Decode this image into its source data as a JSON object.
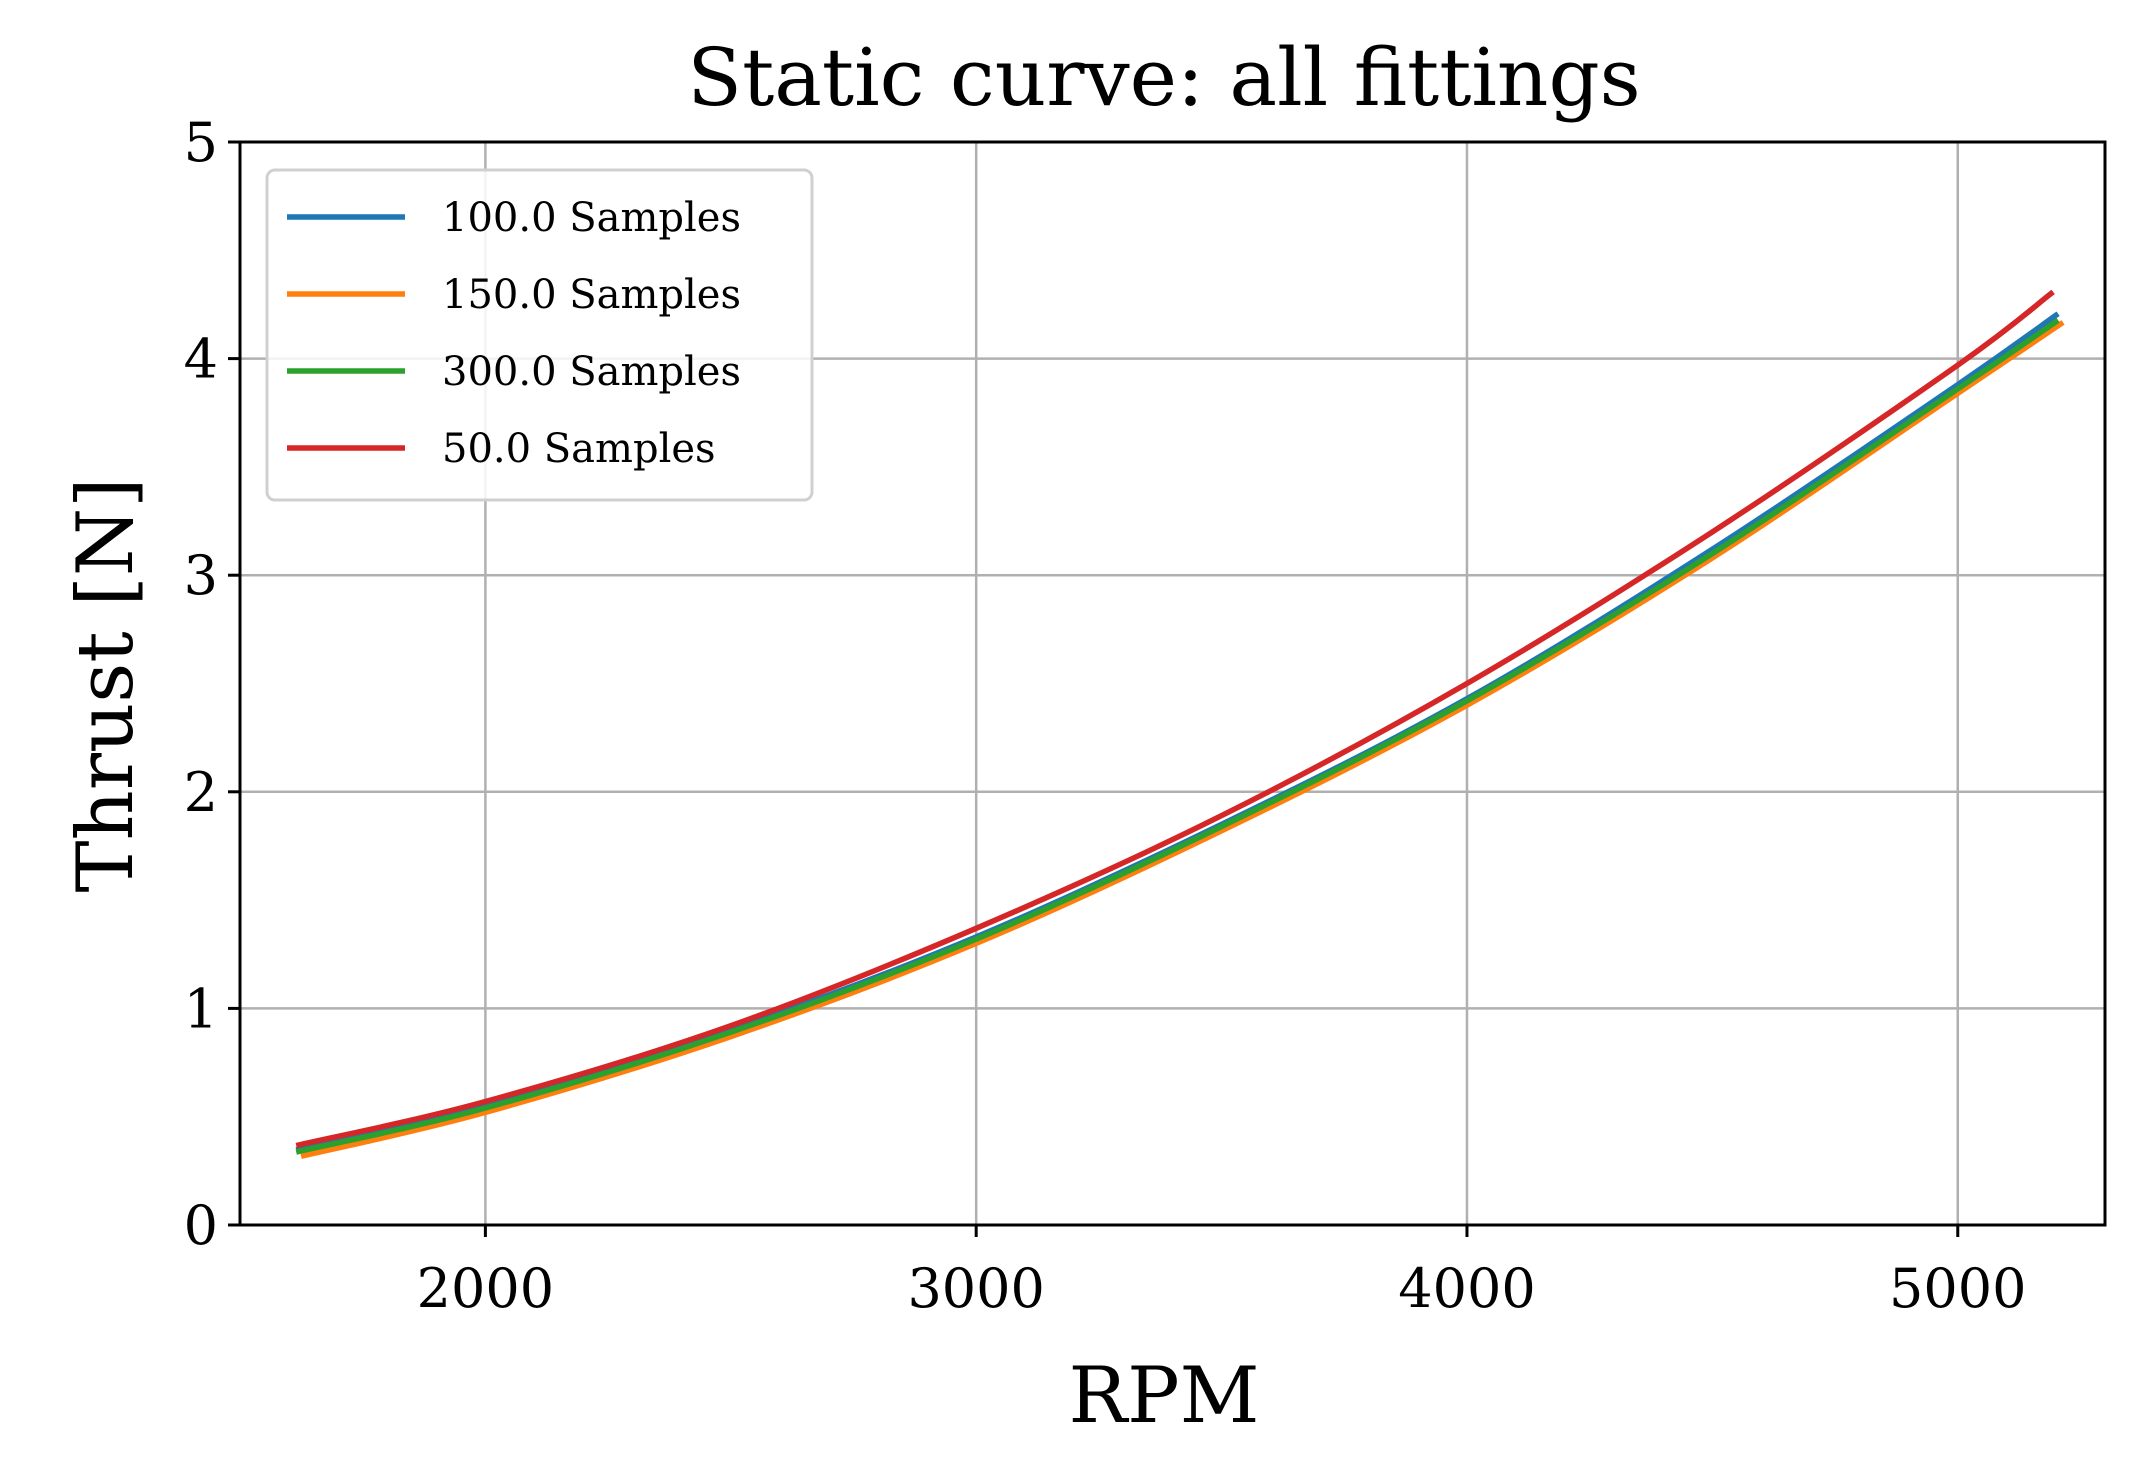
{
  "chart_data": {
    "type": "line",
    "title": "Static curve: all fittings",
    "xlabel": "RPM",
    "ylabel": "Thrust [N]",
    "xlim": [
      1500,
      5300
    ],
    "ylim": [
      0,
      5
    ],
    "xticks": [
      2000,
      3000,
      4000,
      5000
    ],
    "yticks": [
      0,
      1,
      2,
      3,
      4,
      5
    ],
    "grid": true,
    "legend_position": "top-left",
    "series": [
      {
        "name": "100.0 Samples",
        "color": "#1f77b4",
        "x": [
          1620,
          2000,
          2500,
          3000,
          3500,
          4000,
          4500,
          5000,
          5200
        ],
        "y": [
          0.35,
          0.55,
          0.9,
          1.33,
          1.85,
          2.43,
          3.12,
          3.88,
          4.2
        ]
      },
      {
        "name": "150.0 Samples",
        "color": "#ff7f0e",
        "x": [
          1630,
          2000,
          2500,
          3000,
          3500,
          4000,
          4500,
          5000,
          5210
        ],
        "y": [
          0.32,
          0.52,
          0.87,
          1.3,
          1.82,
          2.4,
          3.08,
          3.84,
          4.16
        ]
      },
      {
        "name": "300.0 Samples",
        "color": "#2ca02c",
        "x": [
          1620,
          2000,
          2500,
          3000,
          3500,
          4000,
          4500,
          5000,
          5200
        ],
        "y": [
          0.34,
          0.54,
          0.89,
          1.32,
          1.84,
          2.42,
          3.1,
          3.86,
          4.17
        ]
      },
      {
        "name": "50.0 Samples",
        "color": "#d62728",
        "x": [
          1620,
          2000,
          2500,
          3000,
          3500,
          4000,
          4500,
          5000,
          5190
        ],
        "y": [
          0.37,
          0.57,
          0.92,
          1.37,
          1.89,
          2.5,
          3.2,
          3.97,
          4.3
        ]
      }
    ]
  }
}
